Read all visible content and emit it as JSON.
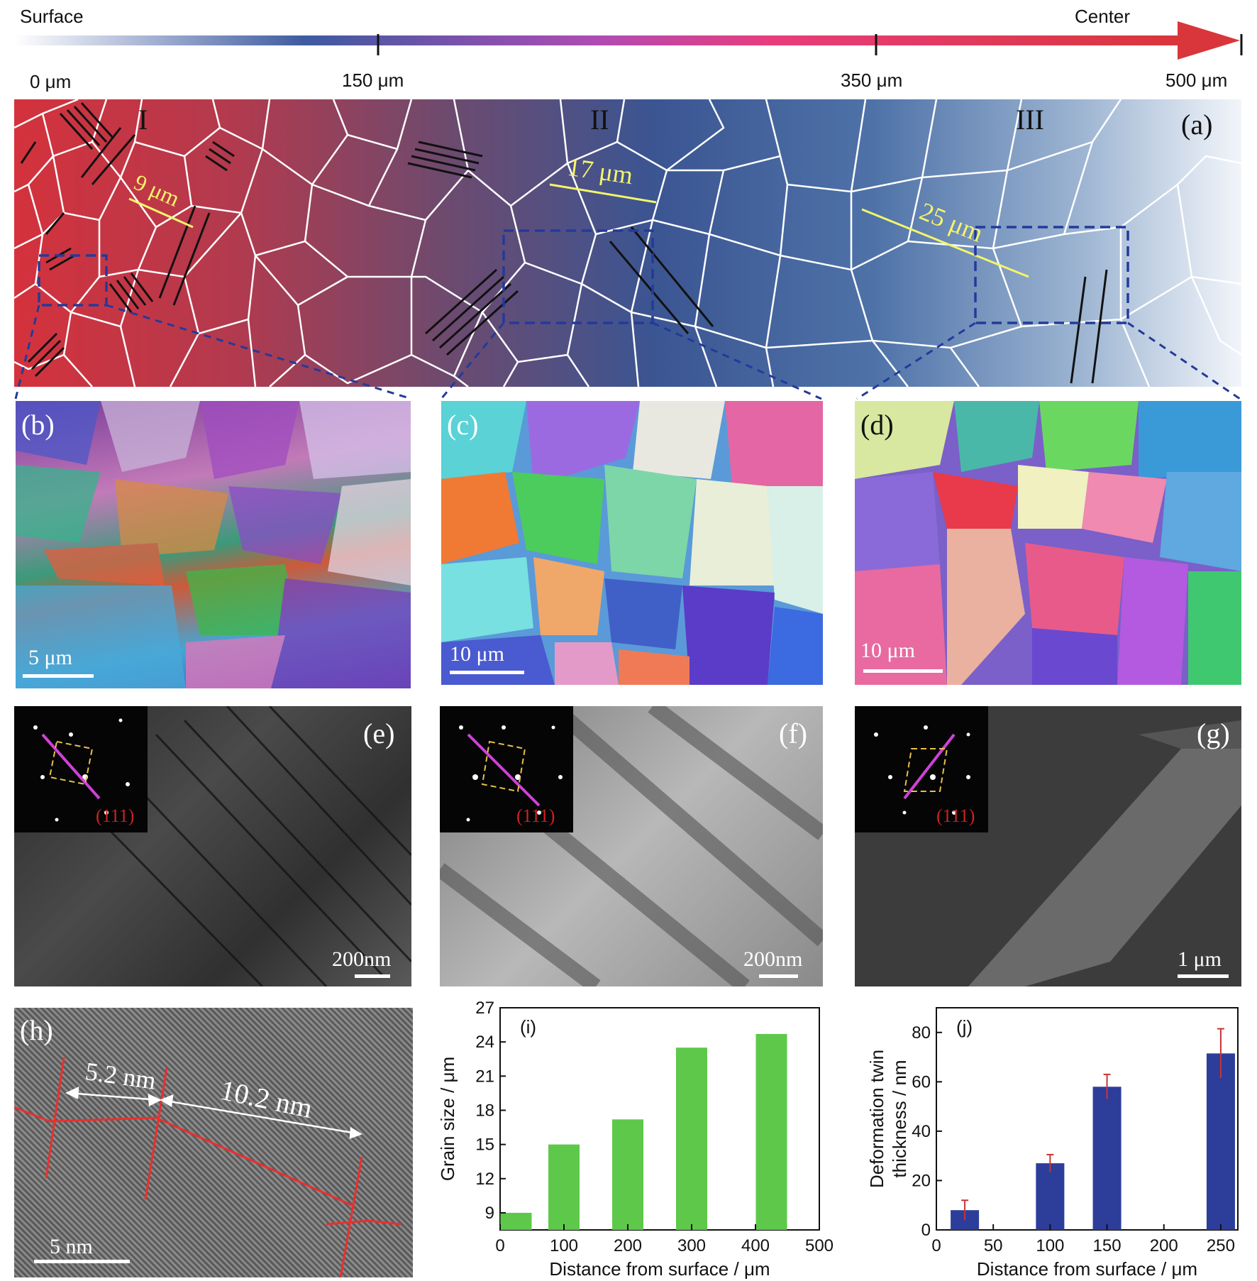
{
  "top_axis": {
    "left_label": "Surface",
    "right_label": "Center",
    "ticks": [
      "0 μm",
      "150 μm",
      "350 μm",
      "500 μm"
    ]
  },
  "schematic": {
    "label": "(a)",
    "regions": [
      "I",
      "II",
      "III"
    ],
    "grain_sizes": [
      "9 μm",
      "17 μm",
      "25 μm"
    ]
  },
  "ebsd": [
    {
      "label": "(b)",
      "scale": "5 μm"
    },
    {
      "label": "(c)",
      "scale": "10 μm"
    },
    {
      "label": "(d)",
      "scale": "10 μm"
    }
  ],
  "tem": [
    {
      "label": "(e)",
      "scale": "200nm",
      "inset_label": "(111)"
    },
    {
      "label": "(f)",
      "scale": "200nm",
      "inset_label": "(111)"
    },
    {
      "label": "(g)",
      "scale": "1 μm",
      "inset_label": "(111)"
    }
  ],
  "hrtem": {
    "label": "(h)",
    "spacing_1": "5.2 nm",
    "spacing_2": "10.2 nm",
    "scale": "5 nm"
  },
  "chart_data": [
    {
      "type": "bar",
      "label": "(i)",
      "x": [
        25,
        100,
        200,
        300,
        425
      ],
      "values": [
        9,
        15,
        17.2,
        23.5,
        24.7
      ],
      "xlabel": "Distance from surface / μm",
      "ylabel": "Grain size / μm",
      "xlim": [
        0,
        500
      ],
      "ylim": [
        7.5,
        27
      ],
      "xticks": [
        0,
        100,
        200,
        300,
        400,
        500
      ],
      "yticks": [
        9,
        12,
        15,
        18,
        21,
        24,
        27
      ],
      "bar_color": "#5ec84a"
    },
    {
      "type": "bar",
      "label": "(j)",
      "x": [
        25,
        100,
        150,
        250
      ],
      "values": [
        8,
        27,
        58,
        71.5
      ],
      "errors": [
        4,
        3.5,
        5,
        10
      ],
      "xlabel": "Distance from surface / μm",
      "ylabel_line1": "Deformation twin",
      "ylabel_line2": "thickness / nm",
      "xlim": [
        0,
        265
      ],
      "ylim": [
        0,
        90
      ],
      "xticks": [
        0,
        50,
        100,
        150,
        200,
        250
      ],
      "yticks": [
        0,
        20,
        40,
        60,
        80
      ],
      "bar_color": "#2d3d9a",
      "error_color": "#cc3333"
    }
  ]
}
